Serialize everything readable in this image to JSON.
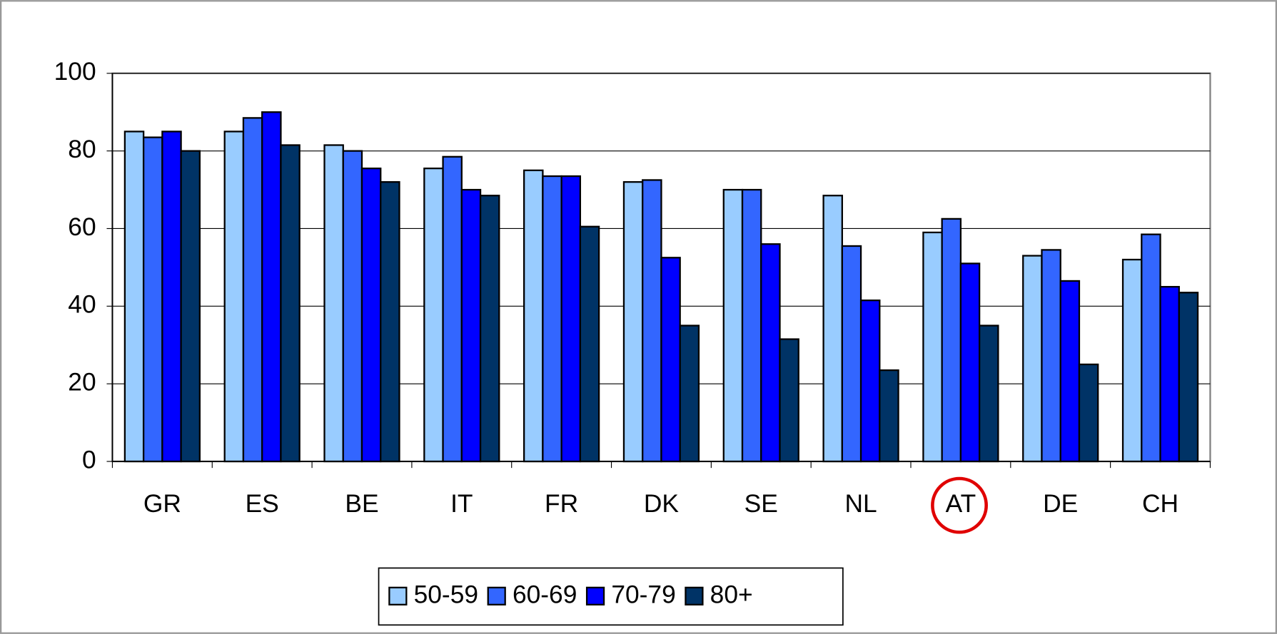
{
  "chart_data": {
    "type": "bar",
    "categories": [
      "GR",
      "ES",
      "BE",
      "IT",
      "FR",
      "DK",
      "SE",
      "NL",
      "AT",
      "DE",
      "CH"
    ],
    "series": [
      {
        "name": "50-59",
        "color": "#99ccff",
        "values": [
          85,
          85,
          81.5,
          75.5,
          75,
          72,
          70,
          68.5,
          59,
          53,
          52
        ]
      },
      {
        "name": "60-69",
        "color": "#3366ff",
        "values": [
          83.5,
          88.5,
          80,
          78.5,
          73.5,
          72.5,
          70,
          55.5,
          62.5,
          54.5,
          58.5
        ]
      },
      {
        "name": "70-79",
        "color": "#0000ff",
        "values": [
          85,
          90,
          75.5,
          70,
          73.5,
          52.5,
          56,
          41.5,
          51,
          46.5,
          45
        ]
      },
      {
        "name": "80+",
        "color": "#003366",
        "values": [
          80,
          81.5,
          72,
          68.5,
          60.5,
          35,
          31.5,
          23.5,
          35,
          25,
          43.5
        ]
      }
    ],
    "ylim": [
      0,
      100
    ],
    "yticks": [
      0,
      20,
      40,
      60,
      80,
      100
    ],
    "grid": true,
    "legend": "bottom"
  }
}
